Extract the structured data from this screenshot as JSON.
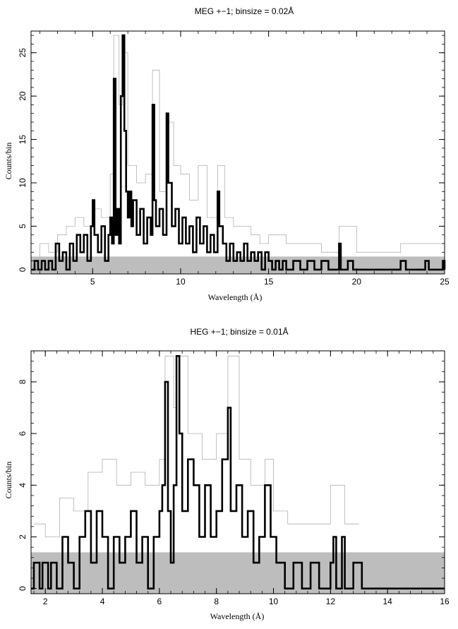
{
  "chart_data": [
    {
      "type": "line",
      "title": "MEG +−1; binsize = 0.02Å",
      "xlabel": "Wavelength (Å)",
      "ylabel": "Counts/bin",
      "xlim": [
        1.5,
        25
      ],
      "ylim": [
        -0.5,
        27.5
      ],
      "x_ticks": [
        5,
        10,
        15,
        20,
        25
      ],
      "y_ticks": [
        0,
        5,
        10,
        15,
        20,
        25
      ],
      "grid": false,
      "background_band": {
        "y": [
          -0.5,
          1.5
        ],
        "color": "#bdbdbd"
      },
      "series": [
        {
          "style": "thick black histogram",
          "color": "#000000",
          "points": [
            [
              1.5,
              0
            ],
            [
              1.7,
              1
            ],
            [
              1.9,
              0
            ],
            [
              2.1,
              1
            ],
            [
              2.3,
              0
            ],
            [
              2.5,
              1
            ],
            [
              2.7,
              0
            ],
            [
              2.9,
              3
            ],
            [
              3.1,
              1
            ],
            [
              3.3,
              2
            ],
            [
              3.5,
              0
            ],
            [
              3.7,
              3
            ],
            [
              3.9,
              1
            ],
            [
              4.1,
              4
            ],
            [
              4.3,
              2
            ],
            [
              4.5,
              4
            ],
            [
              4.7,
              1
            ],
            [
              4.9,
              5
            ],
            [
              5.0,
              8
            ],
            [
              5.1,
              4
            ],
            [
              5.3,
              2
            ],
            [
              5.5,
              5
            ],
            [
              5.7,
              1
            ],
            [
              5.9,
              4
            ],
            [
              6.0,
              6
            ],
            [
              6.1,
              3
            ],
            [
              6.2,
              22
            ],
            [
              6.3,
              4
            ],
            [
              6.4,
              7
            ],
            [
              6.5,
              3
            ],
            [
              6.6,
              20
            ],
            [
              6.7,
              27
            ],
            [
              6.8,
              16
            ],
            [
              6.9,
              9
            ],
            [
              7.0,
              6
            ],
            [
              7.1,
              9
            ],
            [
              7.2,
              5
            ],
            [
              7.3,
              8
            ],
            [
              7.5,
              4
            ],
            [
              7.7,
              7
            ],
            [
              7.9,
              3
            ],
            [
              8.1,
              6
            ],
            [
              8.3,
              4
            ],
            [
              8.4,
              19
            ],
            [
              8.5,
              8
            ],
            [
              8.6,
              5
            ],
            [
              8.8,
              7
            ],
            [
              9.0,
              4
            ],
            [
              9.2,
              18
            ],
            [
              9.3,
              10
            ],
            [
              9.5,
              5
            ],
            [
              9.7,
              7
            ],
            [
              9.9,
              3
            ],
            [
              10.1,
              6
            ],
            [
              10.3,
              3
            ],
            [
              10.5,
              5
            ],
            [
              10.7,
              2
            ],
            [
              10.9,
              6
            ],
            [
              11.1,
              3
            ],
            [
              11.3,
              5
            ],
            [
              11.5,
              2
            ],
            [
              11.7,
              4
            ],
            [
              11.9,
              2
            ],
            [
              12.1,
              9
            ],
            [
              12.2,
              5
            ],
            [
              12.4,
              3
            ],
            [
              12.6,
              1
            ],
            [
              12.8,
              3
            ],
            [
              13.0,
              1
            ],
            [
              13.2,
              2
            ],
            [
              13.4,
              1
            ],
            [
              13.6,
              3
            ],
            [
              13.8,
              1
            ],
            [
              14.0,
              2
            ],
            [
              14.2,
              1
            ],
            [
              14.4,
              2
            ],
            [
              14.6,
              0
            ],
            [
              14.8,
              2
            ],
            [
              15.0,
              1
            ],
            [
              15.2,
              0
            ],
            [
              15.4,
              1
            ],
            [
              15.6,
              0
            ],
            [
              15.8,
              1
            ],
            [
              16.0,
              0
            ],
            [
              16.4,
              1
            ],
            [
              16.8,
              0
            ],
            [
              17.2,
              1
            ],
            [
              17.6,
              0
            ],
            [
              18.0,
              1
            ],
            [
              18.4,
              0
            ],
            [
              18.9,
              0
            ],
            [
              19.0,
              3
            ],
            [
              19.1,
              0
            ],
            [
              19.5,
              1
            ],
            [
              19.8,
              0
            ],
            [
              22.4,
              0
            ],
            [
              22.5,
              1
            ],
            [
              22.8,
              0
            ],
            [
              23.8,
              0
            ],
            [
              23.9,
              1
            ],
            [
              24.1,
              0
            ],
            [
              24.8,
              0
            ],
            [
              24.9,
              1
            ],
            [
              25.0,
              0
            ]
          ]
        },
        {
          "style": "thin grey histogram",
          "color": "#b0b0b0",
          "points": [
            [
              1.5,
              1
            ],
            [
              2.0,
              3
            ],
            [
              2.5,
              2
            ],
            [
              3.0,
              4
            ],
            [
              3.5,
              5
            ],
            [
              4.0,
              6
            ],
            [
              4.5,
              5
            ],
            [
              5.0,
              7
            ],
            [
              5.5,
              6
            ],
            [
              6.0,
              11
            ],
            [
              6.2,
              27
            ],
            [
              6.5,
              19
            ],
            [
              6.7,
              25
            ],
            [
              7.0,
              12
            ],
            [
              7.5,
              10
            ],
            [
              8.0,
              11
            ],
            [
              8.4,
              23
            ],
            [
              8.8,
              9
            ],
            [
              9.2,
              17
            ],
            [
              9.6,
              12
            ],
            [
              10.0,
              11
            ],
            [
              10.5,
              8
            ],
            [
              11.0,
              12
            ],
            [
              11.5,
              6
            ],
            [
              12.1,
              12
            ],
            [
              12.5,
              6
            ],
            [
              13.0,
              5
            ],
            [
              13.5,
              5
            ],
            [
              14.0,
              4
            ],
            [
              14.5,
              3
            ],
            [
              15.0,
              4
            ],
            [
              16.0,
              3
            ],
            [
              17.0,
              3
            ],
            [
              18.0,
              2
            ],
            [
              19.0,
              5
            ],
            [
              20.0,
              2
            ],
            [
              21.0,
              2
            ],
            [
              22.5,
              3
            ],
            [
              24.0,
              3
            ],
            [
              25.0,
              2
            ]
          ]
        }
      ]
    },
    {
      "type": "line",
      "title": "HEG +−1; binsize = 0.01Å",
      "xlabel": "Wavelength (Å)",
      "ylabel": "Counts/bin",
      "xlim": [
        1.5,
        16
      ],
      "ylim": [
        -0.2,
        9.2
      ],
      "x_ticks": [
        2,
        4,
        6,
        8,
        10,
        12,
        14,
        16
      ],
      "y_ticks": [
        0,
        2,
        4,
        6,
        8
      ],
      "grid": false,
      "background_band": {
        "y": [
          -0.2,
          1.4
        ],
        "color": "#bdbdbd"
      },
      "series": [
        {
          "style": "thick black histogram",
          "color": "#000000",
          "points": [
            [
              1.5,
              0
            ],
            [
              1.6,
              1
            ],
            [
              1.8,
              0
            ],
            [
              1.9,
              1
            ],
            [
              2.1,
              0
            ],
            [
              2.2,
              1
            ],
            [
              2.4,
              0
            ],
            [
              2.6,
              2
            ],
            [
              2.8,
              1
            ],
            [
              3.0,
              0
            ],
            [
              3.2,
              2
            ],
            [
              3.4,
              3
            ],
            [
              3.6,
              1
            ],
            [
              3.8,
              3
            ],
            [
              4.0,
              2
            ],
            [
              4.2,
              0
            ],
            [
              4.4,
              2
            ],
            [
              4.6,
              1
            ],
            [
              4.8,
              2
            ],
            [
              5.0,
              3
            ],
            [
              5.2,
              1
            ],
            [
              5.4,
              2
            ],
            [
              5.6,
              0
            ],
            [
              5.8,
              2
            ],
            [
              6.0,
              3
            ],
            [
              6.1,
              4
            ],
            [
              6.2,
              8
            ],
            [
              6.3,
              3
            ],
            [
              6.4,
              1
            ],
            [
              6.5,
              4
            ],
            [
              6.6,
              9
            ],
            [
              6.7,
              6
            ],
            [
              6.8,
              3
            ],
            [
              7.0,
              5
            ],
            [
              7.2,
              4
            ],
            [
              7.4,
              2
            ],
            [
              7.6,
              4
            ],
            [
              7.8,
              2
            ],
            [
              8.0,
              3
            ],
            [
              8.2,
              5
            ],
            [
              8.3,
              5
            ],
            [
              8.4,
              7
            ],
            [
              8.5,
              3
            ],
            [
              8.7,
              4
            ],
            [
              8.9,
              2
            ],
            [
              9.1,
              3
            ],
            [
              9.3,
              1
            ],
            [
              9.5,
              2
            ],
            [
              9.7,
              4
            ],
            [
              9.9,
              2
            ],
            [
              10.1,
              1
            ],
            [
              10.4,
              0
            ],
            [
              10.7,
              1
            ],
            [
              11.0,
              0
            ],
            [
              11.3,
              1
            ],
            [
              11.6,
              0
            ],
            [
              12.0,
              1
            ],
            [
              12.1,
              2
            ],
            [
              12.2,
              0
            ],
            [
              12.4,
              2
            ],
            [
              12.5,
              0
            ],
            [
              12.8,
              1
            ],
            [
              13.1,
              0
            ],
            [
              14.0,
              0
            ],
            [
              16.0,
              0
            ]
          ]
        },
        {
          "style": "thin grey histogram",
          "color": "#b0b0b0",
          "points": [
            [
              1.6,
              2.5
            ],
            [
              2.0,
              2
            ],
            [
              2.5,
              3.5
            ],
            [
              3.0,
              3
            ],
            [
              3.5,
              4.5
            ],
            [
              4.0,
              5
            ],
            [
              4.5,
              4
            ],
            [
              5.0,
              4.5
            ],
            [
              5.5,
              4
            ],
            [
              6.0,
              5
            ],
            [
              6.2,
              9
            ],
            [
              6.5,
              7
            ],
            [
              6.6,
              9
            ],
            [
              7.0,
              6
            ],
            [
              7.5,
              5
            ],
            [
              8.0,
              6
            ],
            [
              8.4,
              9
            ],
            [
              8.8,
              5
            ],
            [
              9.2,
              4
            ],
            [
              9.7,
              5
            ],
            [
              10.0,
              3
            ],
            [
              10.5,
              2.5
            ],
            [
              11.0,
              2.5
            ],
            [
              11.5,
              2.5
            ],
            [
              12.0,
              4
            ],
            [
              12.5,
              2.5
            ],
            [
              13.0,
              2.5
            ]
          ]
        }
      ]
    }
  ]
}
